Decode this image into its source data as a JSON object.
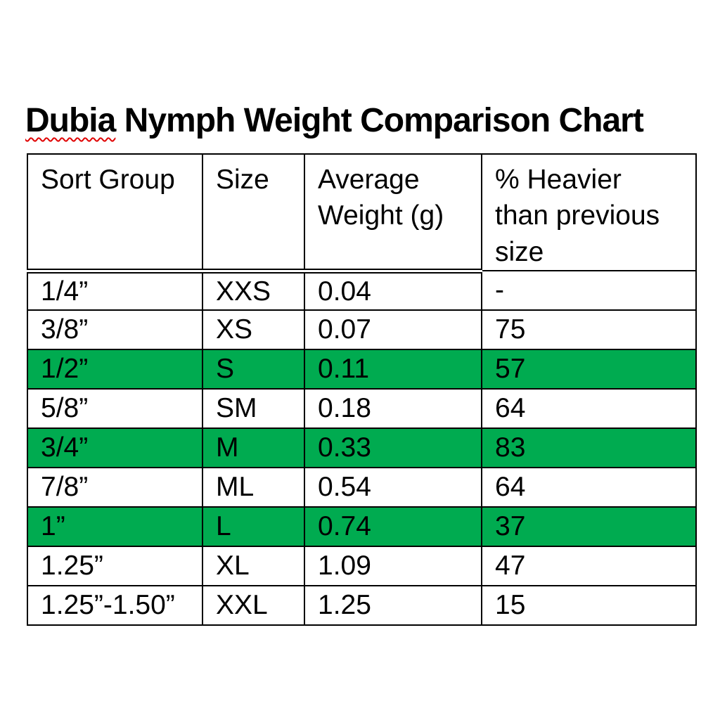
{
  "page": {
    "background": "#ffffff"
  },
  "colors": {
    "highlight_green": "#00ab50",
    "squiggle_red": "#e00000",
    "border_black": "#000000",
    "text_black": "#000000",
    "background_white": "#ffffff"
  },
  "title": {
    "misspelled_word": "Dubia",
    "rest": " Nymph Weight Comparison Chart"
  },
  "table": {
    "headers": [
      "Sort Group",
      "Size",
      "Average\nWeight (g)",
      "% Heavier\nthan previous\nsize"
    ],
    "rows": [
      {
        "cells": [
          "1/4”",
          "XXS",
          "0.04",
          "-"
        ],
        "highlighted": false
      },
      {
        "cells": [
          "3/8”",
          "XS",
          "0.07",
          "75"
        ],
        "highlighted": false
      },
      {
        "cells": [
          "1/2”",
          "S",
          "0.11",
          "57"
        ],
        "highlighted": true
      },
      {
        "cells": [
          "5/8”",
          "SM",
          "0.18",
          "64"
        ],
        "highlighted": false
      },
      {
        "cells": [
          "3/4”",
          "M",
          "0.33",
          "83"
        ],
        "highlighted": true
      },
      {
        "cells": [
          "7/8”",
          "ML",
          "0.54",
          "64"
        ],
        "highlighted": false
      },
      {
        "cells": [
          "1”",
          "L",
          "0.74",
          "37"
        ],
        "highlighted": true
      },
      {
        "cells": [
          "1.25”",
          "XL",
          "1.09",
          "47"
        ],
        "highlighted": false
      },
      {
        "cells": [
          "1.25”-1.50”",
          "XXL",
          "1.25",
          "15"
        ],
        "highlighted": false
      }
    ]
  }
}
